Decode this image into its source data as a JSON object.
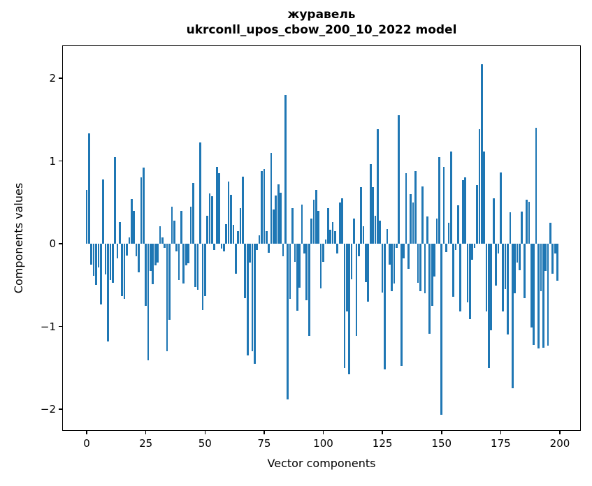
{
  "title": {
    "line1": "журавель",
    "line2": "ukrconll_upos_cbow_200_10_2022 model"
  },
  "chart_data": {
    "type": "bar",
    "title": "журавель — ukrconll_upos_cbow_200_10_2022 model",
    "xlabel": "Vector components",
    "ylabel": "Components values",
    "bar_color": "#1f77b4",
    "n_components": 200,
    "xticks": [
      0,
      25,
      50,
      75,
      100,
      125,
      150,
      175,
      200
    ],
    "yticks": [
      2,
      1,
      0,
      -1,
      -2
    ],
    "xlim": [
      -10,
      209
    ],
    "ylim": [
      -2.28,
      2.4
    ],
    "grid": false,
    "legend": false,
    "values": [
      0.65,
      1.33,
      -0.25,
      -0.39,
      -0.5,
      -0.29,
      -0.73,
      0.78,
      -0.37,
      -1.18,
      -0.44,
      -0.47,
      1.05,
      -0.18,
      0.26,
      -0.63,
      -0.67,
      -0.14,
      0.08,
      0.54,
      0.4,
      -0.15,
      -0.35,
      0.8,
      0.92,
      -0.75,
      -1.41,
      -0.33,
      -0.49,
      -0.26,
      -0.23,
      0.21,
      0.08,
      -0.05,
      -1.3,
      -0.92,
      0.45,
      0.28,
      -0.09,
      -0.44,
      0.4,
      -0.48,
      -0.26,
      -0.24,
      0.45,
      0.73,
      -0.52,
      -0.56,
      1.22,
      -0.8,
      -0.63,
      0.34,
      0.61,
      0.57,
      -0.08,
      0.93,
      0.85,
      -0.06,
      -0.09,
      0.24,
      0.75,
      0.59,
      0.23,
      -0.36,
      0.15,
      0.43,
      0.81,
      -0.66,
      -1.35,
      -0.23,
      -1.3,
      -1.45,
      -0.08,
      0.1,
      0.88,
      0.9,
      0.15,
      -0.11,
      1.1,
      0.41,
      0.58,
      0.72,
      0.62,
      -0.15,
      1.8,
      -1.88,
      -0.67,
      0.43,
      -0.22,
      -0.81,
      -0.53,
      0.47,
      -0.12,
      -0.68,
      -1.11,
      0.3,
      0.53,
      0.65,
      0.4,
      -0.54,
      -0.22,
      0.05,
      0.43,
      0.17,
      0.26,
      0.15,
      -0.12,
      0.5,
      0.55,
      -1.5,
      -0.82,
      -1.58,
      -0.43,
      0.3,
      -1.11,
      -0.15,
      0.68,
      0.21,
      -0.46,
      -0.7,
      0.96,
      0.68,
      0.34,
      1.38,
      0.28,
      -0.59,
      -1.52,
      0.18,
      -0.25,
      -0.57,
      -0.48,
      -0.05,
      1.55,
      -1.48,
      -0.18,
      0.85,
      -0.3,
      0.6,
      0.5,
      0.88,
      -0.47,
      -0.57,
      0.69,
      -0.6,
      0.33,
      -1.09,
      -0.75,
      -0.4,
      0.3,
      1.05,
      -2.07,
      0.93,
      -0.1,
      0.25,
      1.11,
      -0.64,
      -0.08,
      0.46,
      -0.82,
      0.77,
      0.8,
      -0.71,
      -0.91,
      -0.19,
      -0.05,
      0.71,
      1.38,
      2.17,
      1.11,
      -0.82,
      -1.5,
      -1.05,
      0.55,
      -0.51,
      -0.12,
      0.86,
      -0.82,
      -0.55,
      -1.1,
      0.38,
      -1.75,
      -0.6,
      -0.23,
      -0.32,
      0.39,
      -0.66,
      0.53,
      0.51,
      -1.01,
      -1.22,
      1.4,
      -1.27,
      -0.57,
      -1.26,
      -0.33,
      -1.23,
      0.25,
      -0.36,
      -0.12,
      -0.45
    ]
  }
}
